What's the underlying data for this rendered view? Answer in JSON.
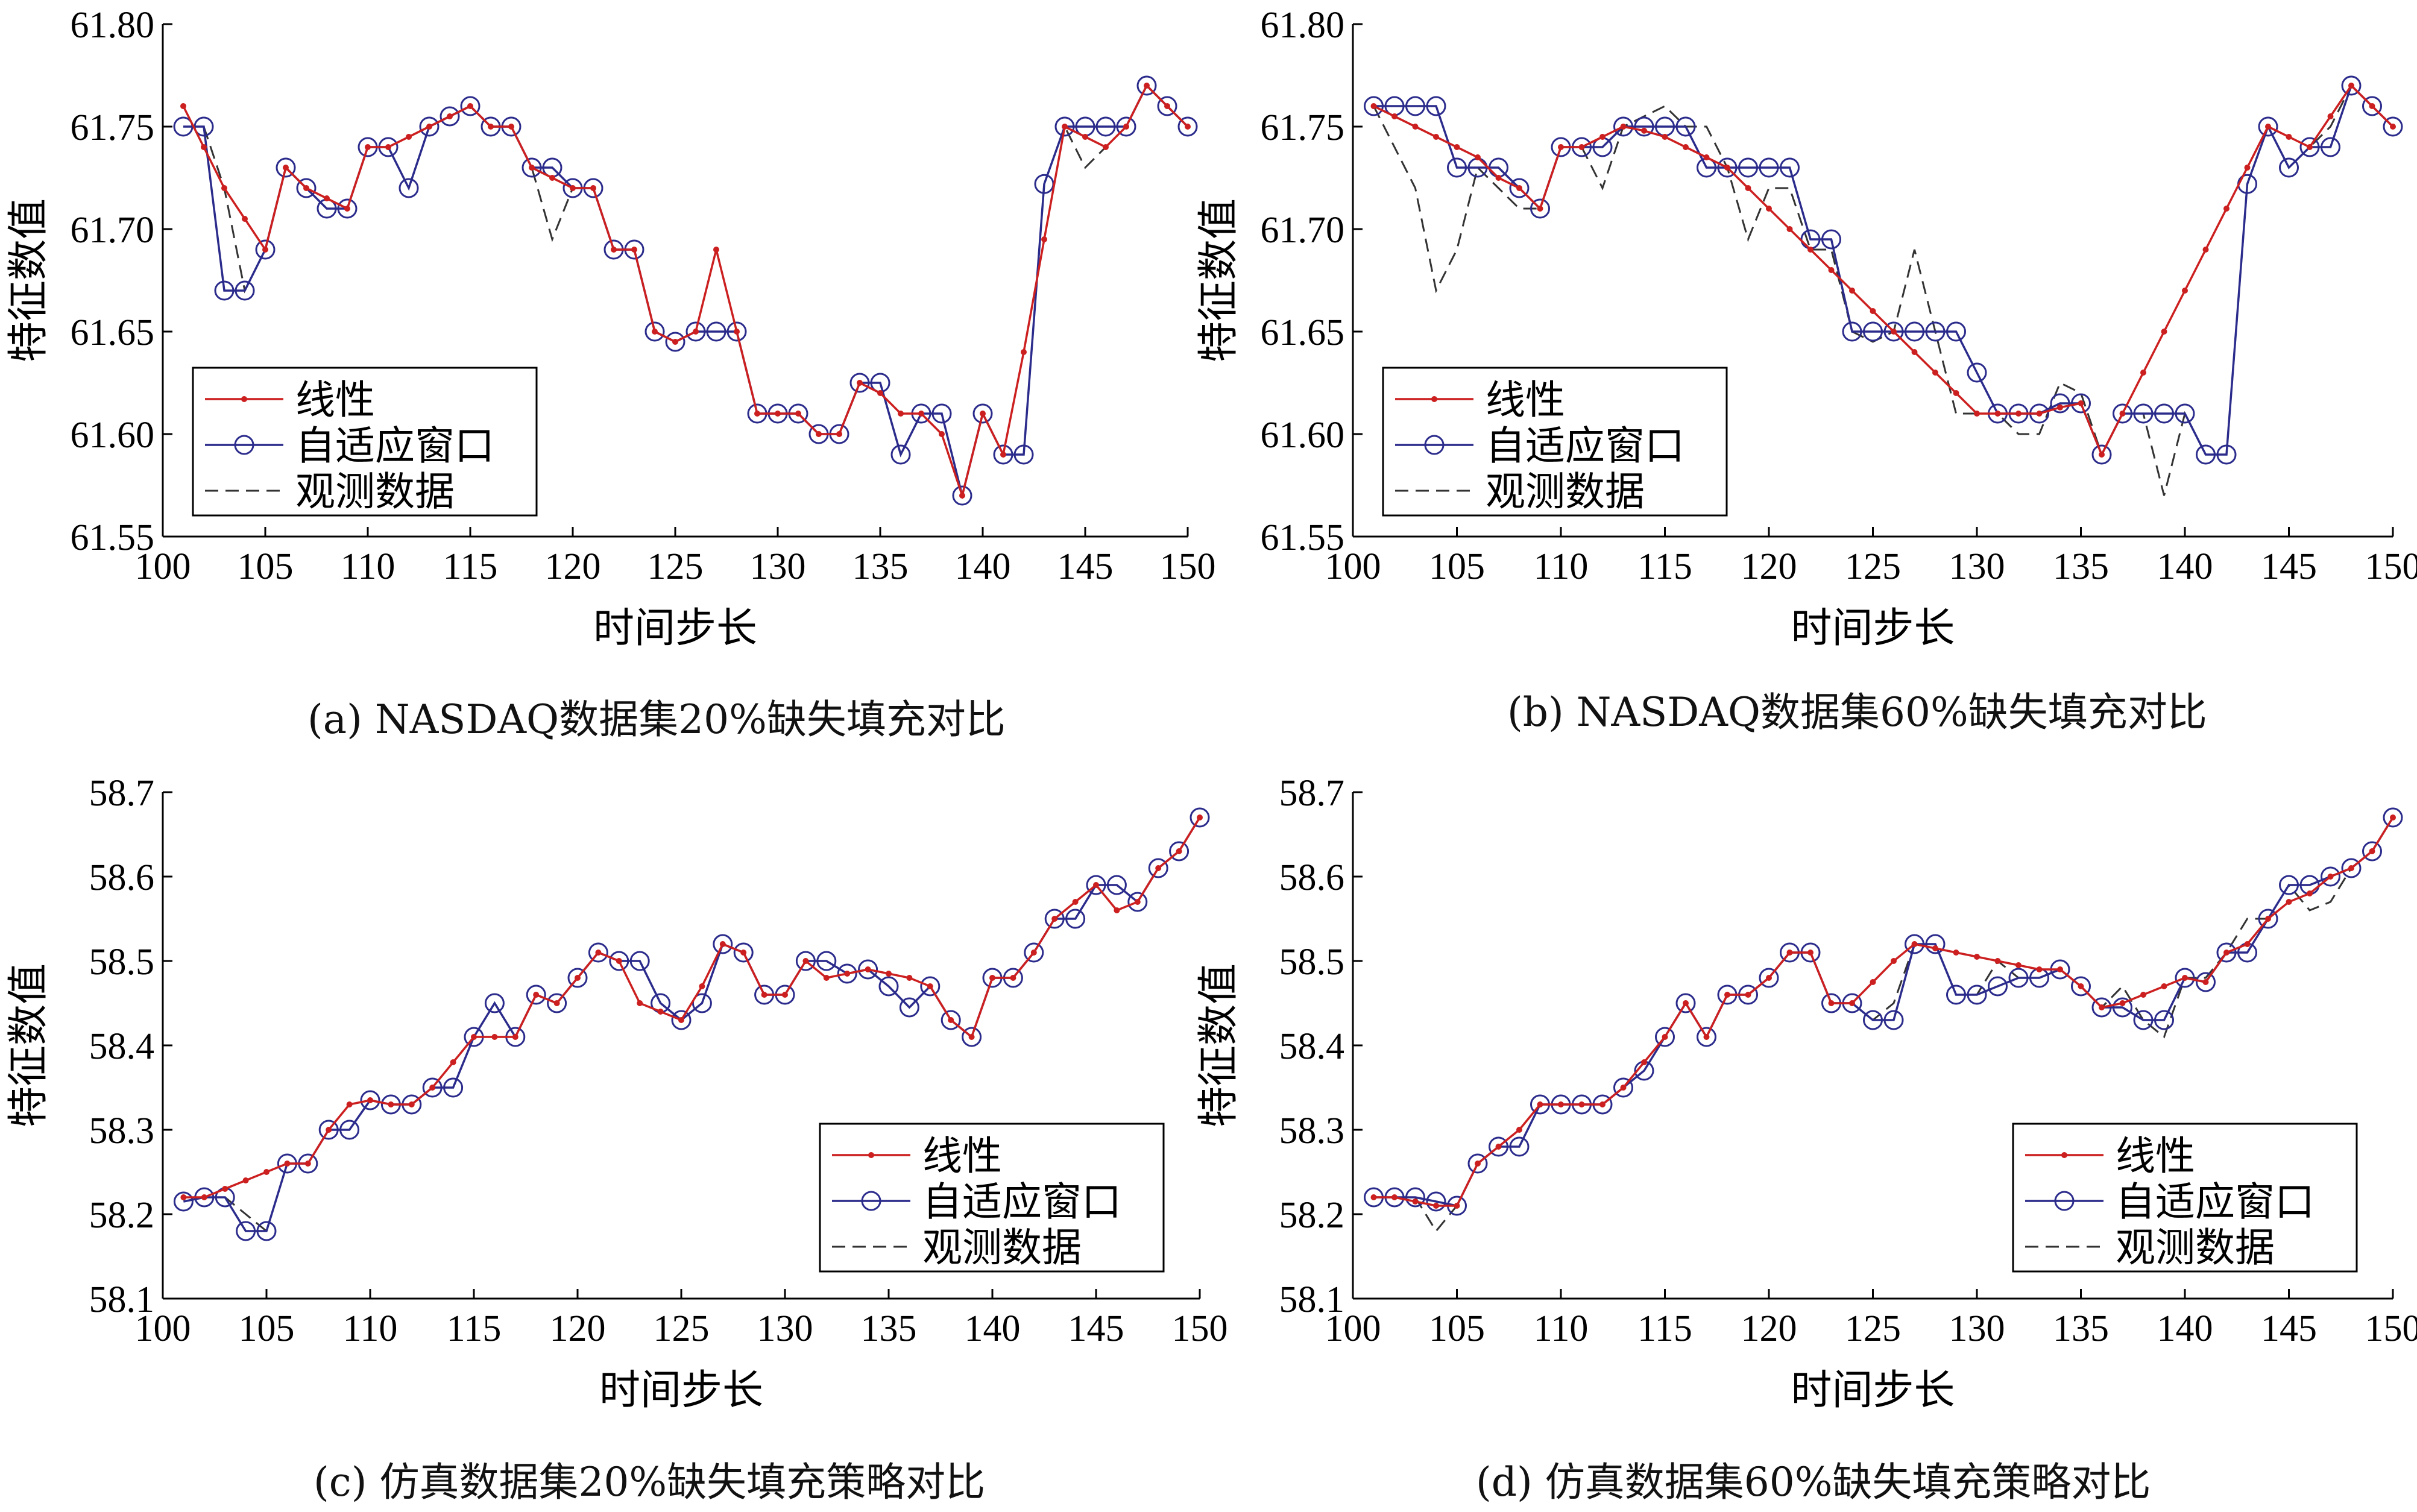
{
  "colors": {
    "linear": "#cc1f1f",
    "adaptive": "#2b2b8c",
    "observed": "#333333",
    "axis": "#000000"
  },
  "legend_labels": [
    "线性",
    "自适应窗口",
    "观测数据"
  ],
  "chart_data": [
    {
      "type": "line",
      "caption": "(a) NASDAQ数据集20%缺失填充对比",
      "xlabel": "时间步长",
      "ylabel": "特征数值",
      "xlim": [
        100,
        150
      ],
      "ylim": [
        61.55,
        61.8
      ],
      "xticks": [
        100,
        105,
        110,
        115,
        120,
        125,
        130,
        135,
        140,
        145,
        150
      ],
      "yticks": [
        61.55,
        61.6,
        61.65,
        61.7,
        61.75,
        61.8
      ],
      "ytick_decimals": 2,
      "legend_position": "bottom-left",
      "x": [
        101,
        102,
        103,
        104,
        105,
        106,
        107,
        108,
        109,
        110,
        111,
        112,
        113,
        114,
        115,
        116,
        117,
        118,
        119,
        120,
        121,
        122,
        123,
        124,
        125,
        126,
        127,
        128,
        129,
        130,
        131,
        132,
        133,
        134,
        135,
        136,
        137,
        138,
        139,
        140,
        141,
        142,
        143,
        144,
        145,
        146,
        147,
        148,
        149,
        150
      ],
      "series": [
        {
          "name": "线性",
          "values": [
            61.76,
            61.74,
            61.72,
            61.705,
            61.69,
            61.73,
            61.72,
            61.715,
            61.71,
            61.74,
            61.74,
            61.745,
            61.75,
            61.755,
            61.76,
            61.75,
            61.75,
            61.73,
            61.725,
            61.72,
            61.72,
            61.69,
            61.69,
            61.65,
            61.645,
            61.65,
            61.69,
            61.65,
            61.61,
            61.61,
            61.61,
            61.6,
            61.6,
            61.625,
            61.62,
            61.61,
            61.61,
            61.6,
            61.57,
            61.61,
            61.59,
            61.64,
            61.695,
            61.75,
            61.745,
            61.74,
            61.75,
            61.77,
            61.76,
            61.75
          ]
        },
        {
          "name": "自适应窗口",
          "values": [
            61.75,
            61.75,
            61.67,
            61.67,
            61.69,
            61.73,
            61.72,
            61.71,
            61.71,
            61.74,
            61.74,
            61.72,
            61.75,
            61.755,
            61.76,
            61.75,
            61.75,
            61.73,
            61.73,
            61.72,
            61.72,
            61.69,
            61.69,
            61.65,
            61.645,
            61.65,
            61.65,
            61.65,
            61.61,
            61.61,
            61.61,
            61.6,
            61.6,
            61.625,
            61.625,
            61.59,
            61.61,
            61.61,
            61.57,
            61.61,
            61.59,
            61.59,
            61.722,
            61.75,
            61.75,
            61.75,
            61.75,
            61.77,
            61.76,
            61.75
          ]
        },
        {
          "name": "观测数据",
          "values": [
            61.75,
            61.75,
            61.72,
            61.67,
            61.69,
            61.73,
            61.72,
            61.71,
            61.71,
            61.74,
            61.74,
            61.72,
            61.75,
            61.755,
            61.76,
            61.75,
            61.75,
            61.73,
            61.695,
            61.72,
            61.72,
            61.69,
            61.69,
            61.65,
            61.645,
            61.65,
            61.69,
            61.65,
            61.61,
            61.61,
            61.61,
            61.6,
            61.6,
            61.625,
            61.625,
            61.59,
            61.61,
            61.61,
            61.57,
            61.61,
            61.59,
            61.59,
            61.722,
            61.75,
            61.73,
            61.74,
            61.75,
            61.77,
            61.76,
            61.75
          ]
        }
      ]
    },
    {
      "type": "line",
      "caption": "(b) NASDAQ数据集60%缺失填充对比",
      "xlabel": "时间步长",
      "ylabel": "特征数值",
      "xlim": [
        100,
        150
      ],
      "ylim": [
        61.55,
        61.8
      ],
      "xticks": [
        100,
        105,
        110,
        115,
        120,
        125,
        130,
        135,
        140,
        145,
        150
      ],
      "yticks": [
        61.55,
        61.6,
        61.65,
        61.7,
        61.75,
        61.8
      ],
      "ytick_decimals": 2,
      "legend_position": "bottom-left",
      "x": [
        101,
        102,
        103,
        104,
        105,
        106,
        107,
        108,
        109,
        110,
        111,
        112,
        113,
        114,
        115,
        116,
        117,
        118,
        119,
        120,
        121,
        122,
        123,
        124,
        125,
        126,
        127,
        128,
        129,
        130,
        131,
        132,
        133,
        134,
        135,
        136,
        137,
        138,
        139,
        140,
        141,
        142,
        143,
        144,
        145,
        146,
        147,
        148,
        149,
        150
      ],
      "series": [
        {
          "name": "线性",
          "values": [
            61.76,
            61.755,
            61.75,
            61.745,
            61.74,
            61.735,
            61.725,
            61.72,
            61.71,
            61.74,
            61.74,
            61.745,
            61.75,
            61.748,
            61.745,
            61.74,
            61.735,
            61.73,
            61.72,
            61.71,
            61.7,
            61.69,
            61.68,
            61.67,
            61.66,
            61.65,
            61.64,
            61.63,
            61.62,
            61.61,
            61.61,
            61.61,
            61.61,
            61.613,
            61.615,
            61.59,
            61.61,
            61.63,
            61.65,
            61.67,
            61.69,
            61.71,
            61.73,
            61.75,
            61.745,
            61.74,
            61.755,
            61.77,
            61.76,
            61.75
          ]
        },
        {
          "name": "自适应窗口",
          "values": [
            61.76,
            61.76,
            61.76,
            61.76,
            61.73,
            61.73,
            61.73,
            61.72,
            61.71,
            61.74,
            61.74,
            61.74,
            61.75,
            61.75,
            61.75,
            61.75,
            61.73,
            61.73,
            61.73,
            61.73,
            61.73,
            61.695,
            61.695,
            61.65,
            61.65,
            61.65,
            61.65,
            61.65,
            61.65,
            61.63,
            61.61,
            61.61,
            61.61,
            61.615,
            61.615,
            61.59,
            61.61,
            61.61,
            61.61,
            61.61,
            61.59,
            61.59,
            61.722,
            61.75,
            61.73,
            61.74,
            61.74,
            61.77,
            61.76,
            61.75
          ]
        },
        {
          "name": "观测数据",
          "values": [
            61.76,
            61.74,
            61.72,
            61.67,
            61.69,
            61.73,
            61.72,
            61.71,
            61.71,
            61.74,
            61.74,
            61.72,
            61.75,
            61.755,
            61.76,
            61.75,
            61.75,
            61.73,
            61.695,
            61.72,
            61.72,
            61.69,
            61.69,
            61.65,
            61.645,
            61.65,
            61.69,
            61.65,
            61.61,
            61.61,
            61.61,
            61.6,
            61.6,
            61.625,
            61.62,
            61.59,
            61.61,
            61.61,
            61.57,
            61.61,
            61.59,
            61.59,
            61.722,
            61.75,
            61.73,
            61.74,
            61.75,
            61.77,
            61.76,
            61.75
          ]
        }
      ]
    },
    {
      "type": "line",
      "caption": "(c) 仿真数据集20%缺失填充策略对比",
      "xlabel": "时间步长",
      "ylabel": "特征数值",
      "xlim": [
        100,
        150
      ],
      "ylim": [
        58.1,
        58.7
      ],
      "xticks": [
        100,
        105,
        110,
        115,
        120,
        125,
        130,
        135,
        140,
        145,
        150
      ],
      "yticks": [
        58.1,
        58.2,
        58.3,
        58.4,
        58.5,
        58.6,
        58.7
      ],
      "ytick_decimals": 1,
      "legend_position": "bottom-right",
      "x": [
        101,
        102,
        103,
        104,
        105,
        106,
        107,
        108,
        109,
        110,
        111,
        112,
        113,
        114,
        115,
        116,
        117,
        118,
        119,
        120,
        121,
        122,
        123,
        124,
        125,
        126,
        127,
        128,
        129,
        130,
        131,
        132,
        133,
        134,
        135,
        136,
        137,
        138,
        139,
        140,
        141,
        142,
        143,
        144,
        145,
        146,
        147,
        148,
        149,
        150
      ],
      "series": [
        {
          "name": "线性",
          "values": [
            58.22,
            58.22,
            58.23,
            58.24,
            58.25,
            58.26,
            58.26,
            58.3,
            58.33,
            58.335,
            58.33,
            58.33,
            58.35,
            58.38,
            58.41,
            58.41,
            58.41,
            58.46,
            58.45,
            58.48,
            58.51,
            58.5,
            58.45,
            58.44,
            58.43,
            58.47,
            58.52,
            58.51,
            58.46,
            58.46,
            58.5,
            58.48,
            58.485,
            58.49,
            58.485,
            58.48,
            58.47,
            58.43,
            58.41,
            58.48,
            58.48,
            58.51,
            58.55,
            58.57,
            58.59,
            58.56,
            58.57,
            58.61,
            58.63,
            58.67
          ]
        },
        {
          "name": "自适应窗口",
          "values": [
            58.215,
            58.22,
            58.22,
            58.18,
            58.18,
            58.26,
            58.26,
            58.3,
            58.3,
            58.335,
            58.33,
            58.33,
            58.35,
            58.35,
            58.41,
            58.45,
            58.41,
            58.46,
            58.45,
            58.48,
            58.51,
            58.5,
            58.5,
            58.45,
            58.43,
            58.45,
            58.52,
            58.51,
            58.46,
            58.46,
            58.5,
            58.5,
            58.485,
            58.49,
            58.47,
            58.445,
            58.47,
            58.43,
            58.41,
            58.48,
            58.48,
            58.51,
            58.55,
            58.55,
            58.59,
            58.59,
            58.57,
            58.61,
            58.63,
            58.67
          ]
        },
        {
          "name": "观测数据",
          "values": [
            58.215,
            58.22,
            58.22,
            58.2,
            58.18,
            58.26,
            58.26,
            58.3,
            58.3,
            58.335,
            58.33,
            58.33,
            58.35,
            58.35,
            58.41,
            58.45,
            58.41,
            58.46,
            58.45,
            58.48,
            58.51,
            58.5,
            58.5,
            58.45,
            58.43,
            58.45,
            58.52,
            58.51,
            58.46,
            58.46,
            58.5,
            58.5,
            58.485,
            58.49,
            58.47,
            58.445,
            58.47,
            58.43,
            58.41,
            58.48,
            58.48,
            58.51,
            58.55,
            58.55,
            58.59,
            58.59,
            58.57,
            58.61,
            58.63,
            58.67
          ]
        }
      ]
    },
    {
      "type": "line",
      "caption": "(d) 仿真数据集60%缺失填充策略对比",
      "xlabel": "时间步长",
      "ylabel": "特征数值",
      "xlim": [
        100,
        150
      ],
      "ylim": [
        58.1,
        58.7
      ],
      "xticks": [
        100,
        105,
        110,
        115,
        120,
        125,
        130,
        135,
        140,
        145,
        150
      ],
      "yticks": [
        58.1,
        58.2,
        58.3,
        58.4,
        58.5,
        58.6,
        58.7
      ],
      "ytick_decimals": 1,
      "legend_position": "bottom-right",
      "x": [
        101,
        102,
        103,
        104,
        105,
        106,
        107,
        108,
        109,
        110,
        111,
        112,
        113,
        114,
        115,
        116,
        117,
        118,
        119,
        120,
        121,
        122,
        123,
        124,
        125,
        126,
        127,
        128,
        129,
        130,
        131,
        132,
        133,
        134,
        135,
        136,
        137,
        138,
        139,
        140,
        141,
        142,
        143,
        144,
        145,
        146,
        147,
        148,
        149,
        150
      ],
      "series": [
        {
          "name": "线性",
          "values": [
            58.22,
            58.22,
            58.215,
            58.21,
            58.21,
            58.26,
            58.28,
            58.3,
            58.33,
            58.33,
            58.33,
            58.33,
            58.35,
            58.38,
            58.41,
            58.45,
            58.41,
            58.46,
            58.46,
            58.48,
            58.51,
            58.51,
            58.45,
            58.45,
            58.475,
            58.5,
            58.52,
            58.515,
            58.51,
            58.505,
            58.5,
            58.495,
            58.49,
            58.49,
            58.47,
            58.445,
            58.45,
            58.46,
            58.47,
            58.48,
            58.475,
            58.51,
            58.52,
            58.55,
            58.57,
            58.58,
            58.6,
            58.61,
            58.63,
            58.67
          ]
        },
        {
          "name": "自适应窗口",
          "values": [
            58.22,
            58.22,
            58.22,
            58.215,
            58.21,
            58.26,
            58.28,
            58.28,
            58.33,
            58.33,
            58.33,
            58.33,
            58.35,
            58.37,
            58.41,
            58.45,
            58.41,
            58.46,
            58.46,
            58.48,
            58.51,
            58.51,
            58.45,
            58.45,
            58.43,
            58.43,
            58.52,
            58.52,
            58.46,
            58.46,
            58.47,
            58.48,
            58.48,
            58.49,
            58.47,
            58.445,
            58.445,
            58.43,
            58.43,
            58.48,
            58.475,
            58.51,
            58.51,
            58.55,
            58.59,
            58.59,
            58.6,
            58.61,
            58.63,
            58.67
          ]
        },
        {
          "name": "观测数据",
          "values": [
            58.22,
            58.22,
            58.22,
            58.18,
            58.21,
            58.26,
            58.28,
            58.28,
            58.33,
            58.33,
            58.33,
            58.33,
            58.35,
            58.37,
            58.41,
            58.45,
            58.41,
            58.46,
            58.46,
            58.48,
            58.51,
            58.51,
            58.45,
            58.45,
            58.43,
            58.45,
            58.52,
            58.52,
            58.46,
            58.46,
            58.5,
            58.48,
            58.48,
            58.49,
            58.47,
            58.445,
            58.47,
            58.43,
            58.41,
            58.48,
            58.48,
            58.51,
            58.55,
            58.55,
            58.59,
            58.56,
            58.57,
            58.61,
            58.63,
            58.67
          ]
        }
      ]
    }
  ]
}
